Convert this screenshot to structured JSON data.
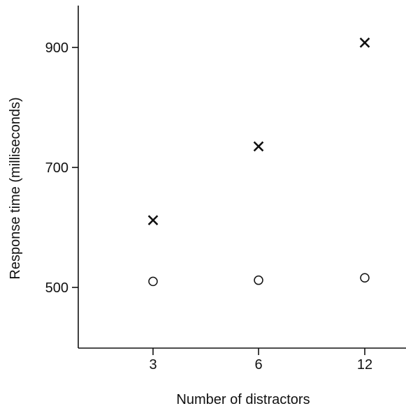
{
  "chart_data": {
    "type": "scatter",
    "title": "",
    "xlabel": "Number of distractors",
    "ylabel": "Response time (milliseconds)",
    "categories": [
      "3",
      "6",
      "12"
    ],
    "x_ticks": [
      "3",
      "6",
      "12"
    ],
    "y_ticks": [
      500,
      700,
      900
    ],
    "ylim": [
      400,
      970
    ],
    "grid": false,
    "legend": "none",
    "series": [
      {
        "marker": "cross",
        "values": [
          612,
          735,
          908
        ]
      },
      {
        "marker": "circle",
        "values": [
          510,
          512,
          516
        ]
      }
    ],
    "colors": {
      "axis": "#111111",
      "marker": "#111111"
    }
  }
}
